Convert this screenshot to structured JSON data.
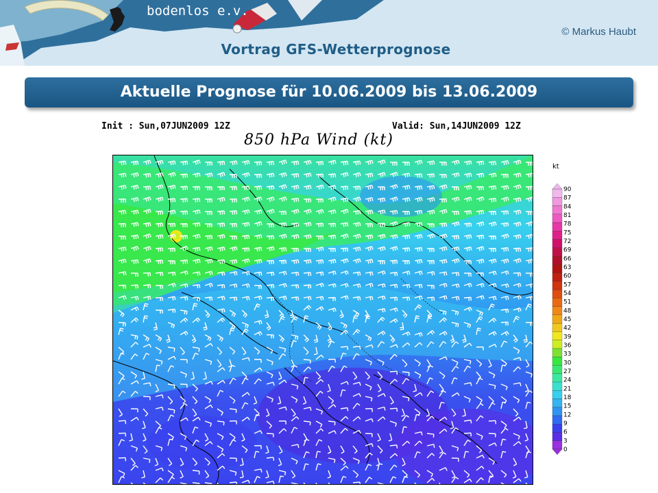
{
  "header": {
    "logo_text": "bodenlos e.v.",
    "copyright": "© Markus Haubt",
    "subtitle": "Vortrag GFS-Wetterprognose"
  },
  "title": "Aktuelle Prognose für 10.06.2009 bis 13.06.2009",
  "map": {
    "init": "Init : Sun,07JUN2009 12Z",
    "valid": "Valid: Sun,14JUN2009 12Z",
    "title": "850 hPa Wind (kt)",
    "unit": "kt",
    "colorbar_levels": [
      "0",
      "3",
      "6",
      "9",
      "12",
      "15",
      "18",
      "21",
      "24",
      "27",
      "30",
      "33",
      "36",
      "39",
      "42",
      "45",
      "48",
      "51",
      "54",
      "57",
      "60",
      "63",
      "66",
      "69",
      "72",
      "75",
      "78",
      "81",
      "84",
      "87",
      "90"
    ],
    "colorbar_colors": [
      "#9b30e0",
      "#5a2de6",
      "#3a40ee",
      "#2f6cf2",
      "#2f94f2",
      "#34b4f0",
      "#38d0ee",
      "#3ae0d0",
      "#3ae8a0",
      "#39e870",
      "#38e840",
      "#7ee032",
      "#ccee22",
      "#f0e81c",
      "#f0c81c",
      "#f0a818",
      "#f08818",
      "#ea6a14",
      "#e04c10",
      "#d03410",
      "#c02010",
      "#b01410",
      "#b0102a",
      "#c0104a",
      "#d0106a",
      "#e0208a",
      "#e838a8",
      "#ee58c0",
      "#f078d0",
      "#f098e0",
      "#f0b8ec"
    ]
  }
}
